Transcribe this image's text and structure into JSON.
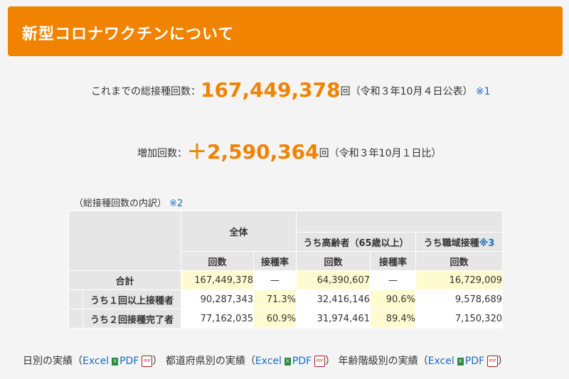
{
  "header": {
    "title": "新型コロナワクチンについて"
  },
  "total": {
    "label": "これまでの総接種回数：",
    "value": "167,449,378",
    "unit": "回（令和３年10月４日公表）",
    "note": "※1"
  },
  "increase": {
    "label": "増加回数：",
    "value": "＋2,590,364",
    "unit": "回（令和３年10月１日比）"
  },
  "breakdown": {
    "caption": "（総接種回数の内訳）",
    "caption_note": "※2",
    "group_all": "全体",
    "group_elderly": "うち高齢者（65歳以上）",
    "group_work": "うち職域接種",
    "group_work_note": "※3",
    "col_count": "回数",
    "col_rate": "接種率",
    "rows": [
      {
        "label": "合計",
        "all_count": "167,449,378",
        "all_rate": "—",
        "eld_count": "64,390,607",
        "eld_rate": "—",
        "work_count": "16,729,009"
      },
      {
        "label": "うち１回以上接種者",
        "all_count": "90,287,343",
        "all_rate": "71.3%",
        "eld_count": "32,416,146",
        "eld_rate": "90.6%",
        "work_count": "9,578,689"
      },
      {
        "label": "うち２回接種完了者",
        "all_count": "77,162,035",
        "all_rate": "60.9%",
        "eld_count": "31,974,461",
        "eld_rate": "89.4%",
        "work_count": "7,150,320"
      }
    ]
  },
  "links": {
    "daily": "日別の実績（",
    "prefecture": "都道府県別の実績（",
    "age": "年齢階級別の実績（",
    "excel": "Excel",
    "pdf": "PDF",
    "close": "）",
    "xls_icon": "excel-icon",
    "pdf_icon": "pdf-icon"
  }
}
